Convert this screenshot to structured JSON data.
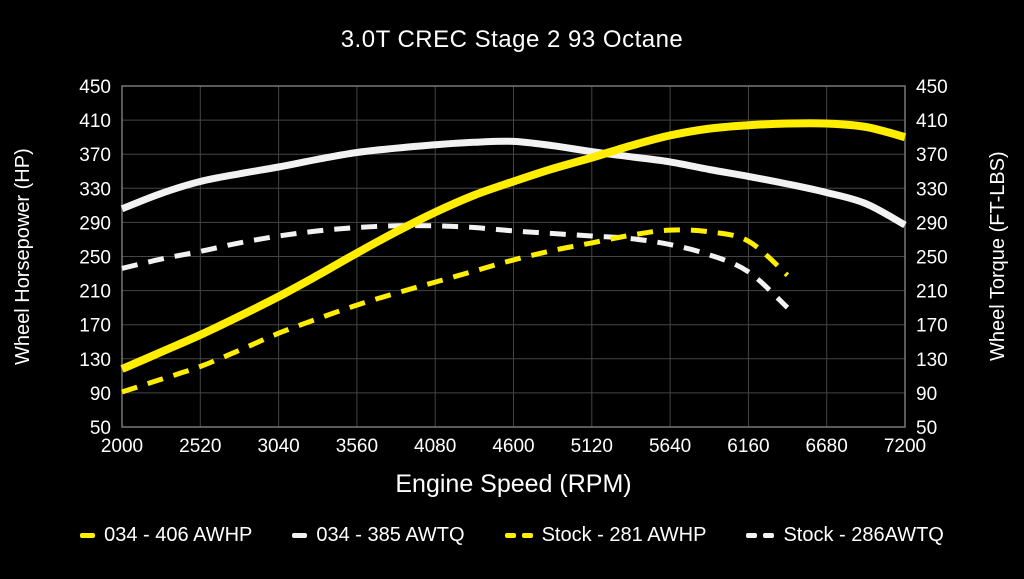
{
  "chart_data": {
    "type": "line",
    "title": "3.0T CREC Stage 2 93 Octane",
    "xlabel": "Engine Speed (RPM)",
    "ylabel_left": "Wheel Horsepower (HP)",
    "ylabel_right": "Wheel Torque (FT-LBS)",
    "xlim": [
      2000,
      7200
    ],
    "ylim": [
      50,
      450
    ],
    "x_ticks": [
      2000,
      2520,
      3040,
      3560,
      4080,
      4600,
      5120,
      5640,
      6160,
      6680,
      7200
    ],
    "y_ticks": [
      50,
      90,
      130,
      170,
      210,
      250,
      290,
      330,
      370,
      410,
      450
    ],
    "grid": true,
    "legend_position": "bottom",
    "colors": {
      "background": "#000000",
      "text": "#ffffff",
      "grid": "#454545",
      "border": "#787878",
      "yellow": "#ffee00",
      "white": "#f2f2f2"
    },
    "x": [
      2000,
      2260,
      2520,
      2780,
      3040,
      3300,
      3560,
      3820,
      4080,
      4340,
      4600,
      4860,
      5120,
      5380,
      5640,
      5900,
      6160,
      6420,
      6680,
      6940,
      7200
    ],
    "series": [
      {
        "name": "034 - 406 AWHP",
        "color": "#ffee00",
        "dash": "solid",
        "axis": "left",
        "width": 8,
        "values": [
          118,
          138,
          158,
          180,
          203,
          228,
          254,
          279,
          302,
          322,
          338,
          353,
          366,
          380,
          392,
          400,
          404,
          406,
          406,
          402,
          390
        ]
      },
      {
        "name": "034 - 385 AWTQ",
        "color": "#f2f2f2",
        "dash": "solid",
        "axis": "right",
        "width": 7,
        "values": [
          306,
          324,
          338,
          347,
          355,
          364,
          372,
          377,
          381,
          384,
          385,
          380,
          373,
          367,
          361,
          352,
          344,
          335,
          325,
          312,
          287
        ]
      },
      {
        "name": "Stock - 281 AWHP",
        "color": "#ffee00",
        "dash": "dashed",
        "axis": "left",
        "width": 5,
        "values": [
          91,
          106,
          121,
          140,
          160,
          177,
          193,
          207,
          220,
          233,
          246,
          257,
          266,
          275,
          281,
          279,
          268,
          228,
          null,
          null,
          null
        ]
      },
      {
        "name": "Stock - 286AWTQ",
        "color": "#f2f2f2",
        "dash": "dashed",
        "axis": "right",
        "width": 5,
        "values": [
          236,
          247,
          256,
          266,
          274,
          280,
          284,
          286,
          286,
          284,
          280,
          277,
          274,
          271,
          264,
          252,
          232,
          190,
          null,
          null,
          null
        ]
      }
    ]
  }
}
